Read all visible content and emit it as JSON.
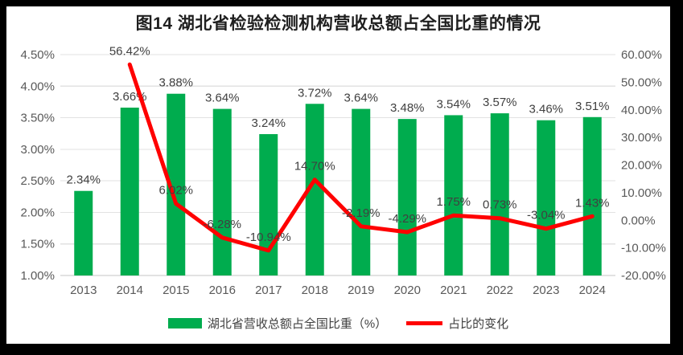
{
  "frame": {
    "border_color": "#000000",
    "background": "#ffffff"
  },
  "title": {
    "text": "图14 湖北省检验检测机构营收总额占全国比重的情况",
    "color": "#1f1f1f"
  },
  "legend": {
    "items": [
      {
        "label": "湖北省营收总额占全国比重（%）",
        "swatch": "bar",
        "color": "#00AC4E"
      },
      {
        "label": "占比的变化",
        "swatch": "line",
        "color": "#FF0000"
      }
    ]
  },
  "chart_data": {
    "type": "combo",
    "title": "图14 湖北省检验检测机构营收总额占全国比重的情况",
    "categories": [
      "2013",
      "2014",
      "2015",
      "2016",
      "2017",
      "2018",
      "2019",
      "2020",
      "2021",
      "2022",
      "2023",
      "2024"
    ],
    "series": [
      {
        "name": "湖北省营收总额占全国比重（%）",
        "type": "bar",
        "axis": "left",
        "color": "#00AC4E",
        "values": [
          2.34,
          3.66,
          3.88,
          3.64,
          3.24,
          3.72,
          3.64,
          3.48,
          3.54,
          3.57,
          3.46,
          3.51
        ],
        "labels": [
          "2.34%",
          "3.66%",
          "3.88%",
          "3.64%",
          "3.24%",
          "3.72%",
          "3.64%",
          "3.48%",
          "3.54%",
          "3.57%",
          "3.46%",
          "3.51%"
        ]
      },
      {
        "name": "占比的变化",
        "type": "line",
        "axis": "right",
        "color": "#FF0000",
        "values": [
          null,
          56.42,
          6.02,
          -6.28,
          -10.94,
          14.7,
          -2.19,
          -4.29,
          1.75,
          0.73,
          -3.04,
          1.43
        ],
        "labels": [
          null,
          "56.42%",
          "6.02%",
          "-6.28%",
          "-10.94%",
          "14.70%",
          "-2.19%",
          "-4.29%",
          "1.75%",
          "0.73%",
          "-3.04%",
          "1.43%"
        ]
      }
    ],
    "left_axis": {
      "min": 1.0,
      "max": 4.5,
      "tick_values": [
        4.5,
        4.0,
        3.5,
        3.0,
        2.5,
        2.0,
        1.5,
        1.0
      ],
      "tick_labels": [
        "4.50%",
        "4.00%",
        "3.50%",
        "3.00%",
        "2.50%",
        "2.00%",
        "1.50%",
        "1.00%"
      ]
    },
    "right_axis": {
      "min": -20,
      "max": 60,
      "tick_values": [
        60,
        50,
        40,
        30,
        20,
        10,
        0,
        -10,
        -20
      ],
      "tick_labels": [
        "60.00%",
        "50.00%",
        "40.00%",
        "30.00%",
        "20.00%",
        "10.00%",
        "0.00%",
        "-10.00%",
        "-20.00%"
      ]
    },
    "grid": true,
    "legend_position": "bottom",
    "colors": {
      "grid": "#E2E2E2",
      "axis_line": "#C6C6C6",
      "tick_text": "#595959",
      "data_label": "#404040"
    }
  }
}
